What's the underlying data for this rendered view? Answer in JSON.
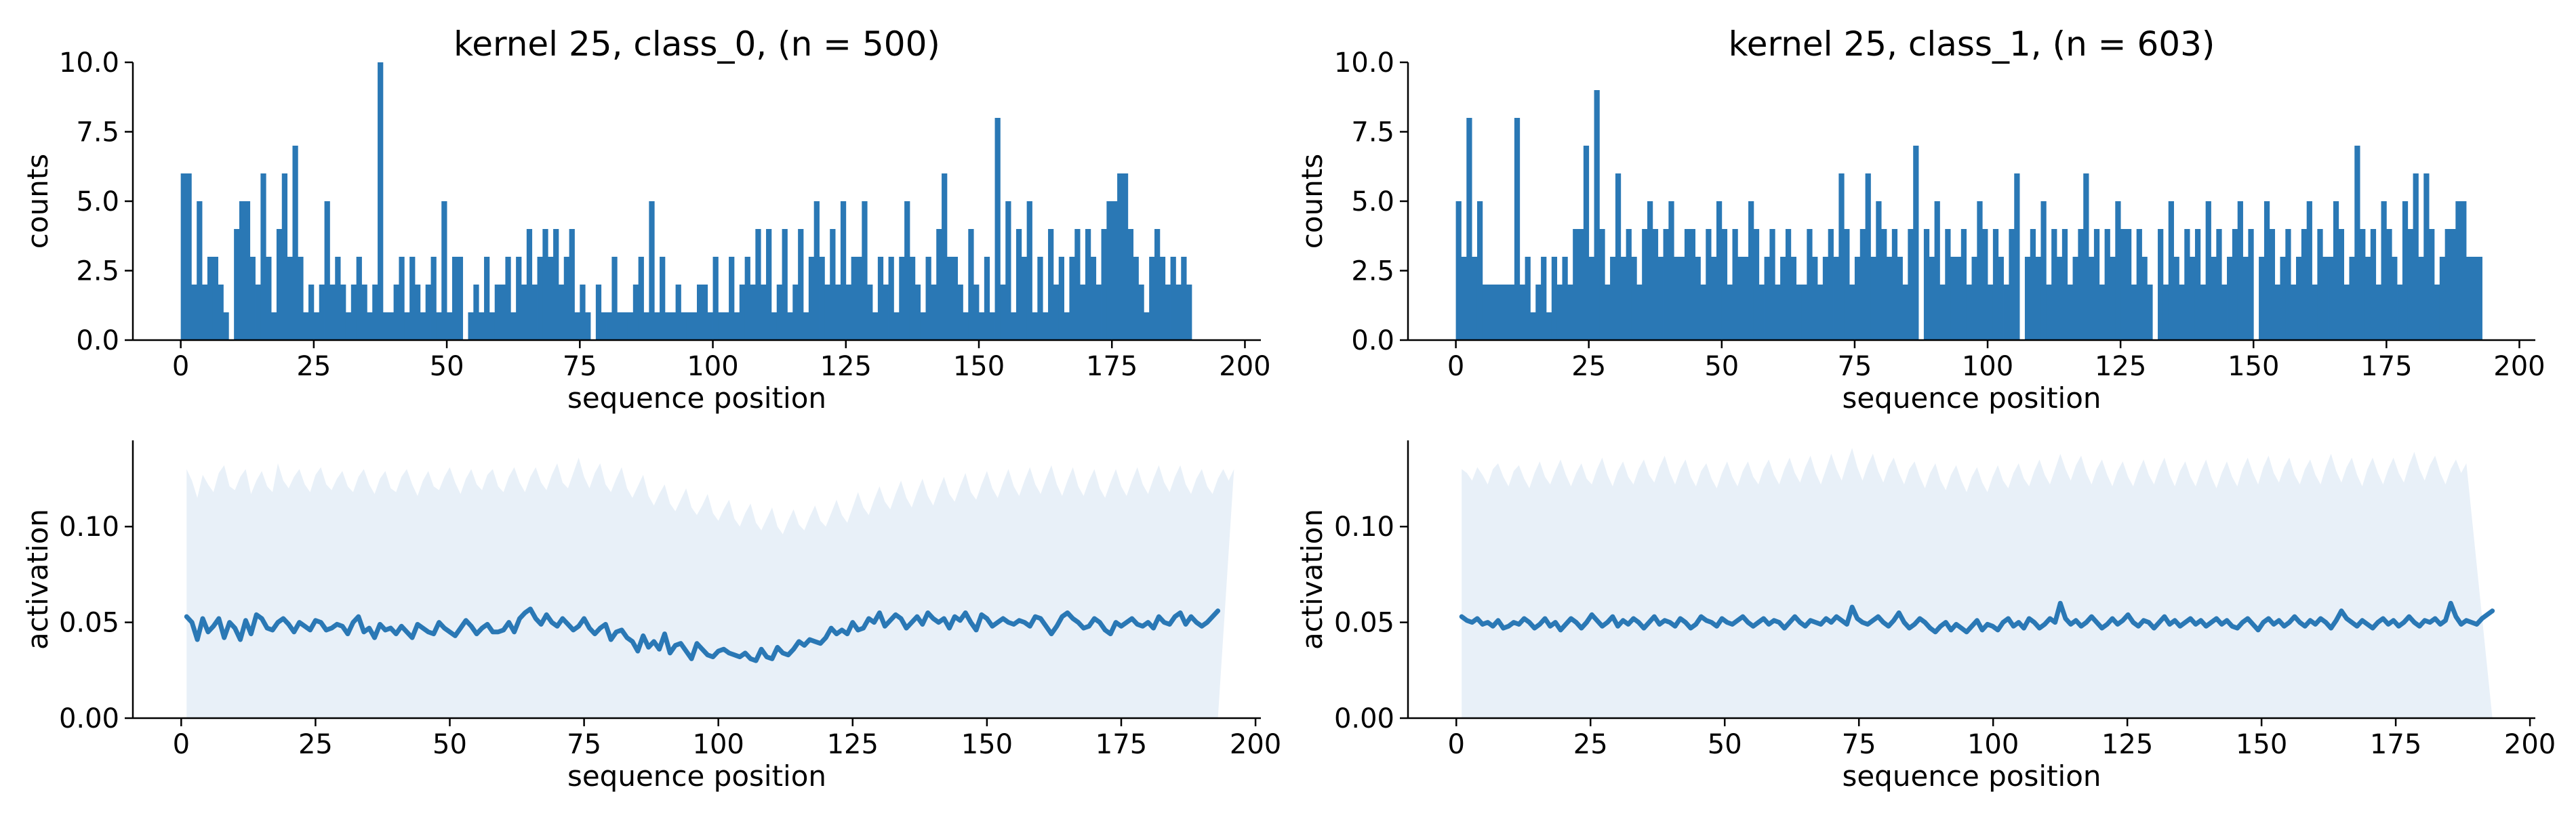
{
  "figure": {
    "colors": {
      "series": "#2a78b5",
      "band": "#e8f0f8",
      "axis": "#000000"
    }
  },
  "chart_data": [
    {
      "type": "bar",
      "title": "kernel 25, class_0, (n = 500)",
      "xlabel": "sequence position",
      "ylabel": "counts",
      "xlim": [
        -9,
        203
      ],
      "ylim": [
        0,
        10
      ],
      "xticks": [
        0,
        25,
        50,
        75,
        100,
        125,
        150,
        175,
        200
      ],
      "yticks": [
        0,
        2.5,
        5,
        7.5,
        10
      ],
      "ytick_labels": [
        "0.0",
        "2.5",
        "5.0",
        "7.5",
        "10.0"
      ],
      "grid": false,
      "legend": "none",
      "values": [
        6,
        6,
        2,
        5,
        2,
        3,
        3,
        2,
        1,
        0,
        4,
        5,
        5,
        3,
        2,
        6,
        3,
        1,
        4,
        6,
        3,
        7,
        3,
        1,
        2,
        1,
        2,
        5,
        2,
        3,
        2,
        1,
        2,
        3,
        2,
        1,
        2,
        10,
        1,
        1,
        2,
        3,
        1,
        3,
        2,
        1,
        2,
        3,
        1,
        5,
        1,
        3,
        3,
        0,
        1,
        2,
        1,
        3,
        1,
        2,
        2,
        3,
        1,
        3,
        2,
        4,
        2,
        3,
        4,
        3,
        4,
        2,
        3,
        4,
        1,
        2,
        1,
        0,
        2,
        1,
        1,
        3,
        1,
        1,
        1,
        2,
        3,
        1,
        5,
        1,
        3,
        1,
        1,
        2,
        1,
        1,
        1,
        2,
        2,
        1,
        3,
        1,
        1,
        3,
        1,
        2,
        3,
        2,
        4,
        2,
        4,
        1,
        2,
        4,
        1,
        2,
        4,
        1,
        3,
        5,
        3,
        2,
        4,
        2,
        5,
        2,
        3,
        3,
        5,
        2,
        1,
        3,
        2,
        3,
        1,
        3,
        5,
        3,
        2,
        1,
        3,
        2,
        4,
        6,
        3,
        3,
        2,
        1,
        4,
        2,
        1,
        3,
        1,
        8,
        2,
        5,
        1,
        4,
        3,
        5,
        1,
        3,
        1,
        4,
        2,
        3,
        1,
        3,
        4,
        2,
        4,
        3,
        2,
        4,
        5,
        5,
        6,
        6,
        4,
        3,
        2,
        1,
        3,
        4,
        3,
        2,
        3,
        2,
        3,
        2
      ],
      "band": {
        "upper": 0.13
      }
    },
    {
      "type": "bar",
      "title": "kernel 25, class_1, (n = 603)",
      "xlabel": "sequence position",
      "ylabel": "counts",
      "xlim": [
        -9,
        203
      ],
      "ylim": [
        0,
        10
      ],
      "xticks": [
        0,
        25,
        50,
        75,
        100,
        125,
        150,
        175,
        200
      ],
      "yticks": [
        0,
        2.5,
        5,
        7.5,
        10
      ],
      "ytick_labels": [
        "0.0",
        "2.5",
        "5.0",
        "7.5",
        "10.0"
      ],
      "grid": false,
      "legend": "none",
      "values": [
        5,
        3,
        8,
        3,
        5,
        2,
        2,
        2,
        2,
        2,
        2,
        8,
        2,
        3,
        1,
        2,
        3,
        1,
        3,
        2,
        3,
        2,
        4,
        4,
        7,
        3,
        9,
        4,
        2,
        3,
        6,
        3,
        4,
        3,
        2,
        4,
        5,
        4,
        3,
        4,
        5,
        3,
        3,
        4,
        4,
        3,
        2,
        4,
        3,
        5,
        4,
        2,
        4,
        3,
        3,
        5,
        4,
        2,
        3,
        4,
        2,
        3,
        4,
        3,
        2,
        2,
        4,
        3,
        2,
        3,
        4,
        3,
        6,
        4,
        2,
        3,
        4,
        6,
        3,
        5,
        4,
        3,
        4,
        3,
        2,
        4,
        7,
        0,
        4,
        3,
        5,
        2,
        4,
        3,
        3,
        4,
        2,
        3,
        5,
        4,
        2,
        4,
        3,
        2,
        4,
        6,
        0,
        3,
        4,
        3,
        5,
        2,
        4,
        3,
        4,
        2,
        3,
        4,
        6,
        3,
        4,
        2,
        4,
        3,
        5,
        4,
        4,
        2,
        4,
        3,
        2,
        0,
        4,
        2,
        5,
        3,
        2,
        4,
        3,
        4,
        2,
        5,
        3,
        4,
        2,
        3,
        4,
        5,
        3,
        4,
        0,
        3,
        5,
        4,
        2,
        3,
        4,
        2,
        3,
        4,
        5,
        2,
        4,
        3,
        3,
        5,
        4,
        2,
        3,
        7,
        4,
        3,
        4,
        2,
        5,
        4,
        3,
        2,
        5,
        4,
        6,
        3,
        6,
        4,
        2,
        3,
        4,
        4,
        5,
        5,
        3,
        3,
        3
      ],
      "band": {
        "upper": 0.13
      }
    },
    {
      "type": "area",
      "xlabel": "sequence position",
      "ylabel": "activation",
      "xlim": [
        -9,
        201
      ],
      "ylim": [
        0,
        0.145
      ],
      "xticks": [
        0,
        25,
        50,
        75,
        100,
        125,
        150,
        175,
        200
      ],
      "yticks": [
        0,
        0.05,
        0.1
      ],
      "ytick_labels": [
        "0.00",
        "0.05",
        "0.10"
      ],
      "grid": false,
      "legend": "none",
      "x_range": [
        1,
        193
      ],
      "line": [
        0.053,
        0.05,
        0.041,
        0.052,
        0.045,
        0.048,
        0.052,
        0.042,
        0.05,
        0.047,
        0.041,
        0.051,
        0.044,
        0.054,
        0.052,
        0.047,
        0.046,
        0.05,
        0.052,
        0.049,
        0.045,
        0.05,
        0.048,
        0.046,
        0.051,
        0.05,
        0.046,
        0.047,
        0.049,
        0.048,
        0.044,
        0.05,
        0.053,
        0.045,
        0.047,
        0.042,
        0.049,
        0.046,
        0.047,
        0.044,
        0.048,
        0.045,
        0.042,
        0.049,
        0.047,
        0.045,
        0.044,
        0.05,
        0.047,
        0.045,
        0.043,
        0.047,
        0.051,
        0.048,
        0.044,
        0.047,
        0.049,
        0.045,
        0.045,
        0.046,
        0.05,
        0.045,
        0.052,
        0.055,
        0.057,
        0.052,
        0.049,
        0.054,
        0.05,
        0.048,
        0.052,
        0.049,
        0.046,
        0.048,
        0.052,
        0.047,
        0.044,
        0.047,
        0.049,
        0.041,
        0.045,
        0.046,
        0.042,
        0.04,
        0.035,
        0.043,
        0.037,
        0.04,
        0.036,
        0.044,
        0.034,
        0.038,
        0.039,
        0.035,
        0.031,
        0.039,
        0.036,
        0.033,
        0.032,
        0.035,
        0.036,
        0.034,
        0.033,
        0.032,
        0.034,
        0.031,
        0.03,
        0.036,
        0.032,
        0.031,
        0.037,
        0.034,
        0.033,
        0.036,
        0.04,
        0.038,
        0.041,
        0.04,
        0.039,
        0.042,
        0.047,
        0.044,
        0.046,
        0.044,
        0.05,
        0.046,
        0.047,
        0.052,
        0.05,
        0.055,
        0.048,
        0.051,
        0.054,
        0.052,
        0.047,
        0.05,
        0.053,
        0.049,
        0.055,
        0.052,
        0.05,
        0.052,
        0.047,
        0.053,
        0.051,
        0.055,
        0.05,
        0.046,
        0.054,
        0.052,
        0.048,
        0.05,
        0.052,
        0.05,
        0.049,
        0.051,
        0.05,
        0.048,
        0.053,
        0.052,
        0.048,
        0.044,
        0.048,
        0.053,
        0.055,
        0.052,
        0.05,
        0.047,
        0.048,
        0.052,
        0.05,
        0.046,
        0.044,
        0.05,
        0.048,
        0.05,
        0.052,
        0.049,
        0.048,
        0.05,
        0.047,
        0.053,
        0.05,
        0.049,
        0.053,
        0.055,
        0.049,
        0.053,
        0.05,
        0.048,
        0.05,
        0.053,
        0.056
      ],
      "band_upper": [
        0.13,
        0.124,
        0.115,
        0.127,
        0.122,
        0.118,
        0.128,
        0.132,
        0.121,
        0.119,
        0.126,
        0.13,
        0.117,
        0.124,
        0.129,
        0.121,
        0.118,
        0.133,
        0.124,
        0.12,
        0.126,
        0.13,
        0.122,
        0.118,
        0.127,
        0.131,
        0.122,
        0.119,
        0.125,
        0.129,
        0.121,
        0.118,
        0.126,
        0.13,
        0.122,
        0.117,
        0.125,
        0.129,
        0.12,
        0.118,
        0.126,
        0.13,
        0.122,
        0.116,
        0.124,
        0.129,
        0.121,
        0.119,
        0.126,
        0.131,
        0.123,
        0.117,
        0.125,
        0.13,
        0.122,
        0.119,
        0.127,
        0.13,
        0.121,
        0.118,
        0.126,
        0.131,
        0.123,
        0.118,
        0.126,
        0.131,
        0.123,
        0.119,
        0.127,
        0.133,
        0.123,
        0.12,
        0.128,
        0.136,
        0.126,
        0.12,
        0.128,
        0.133,
        0.122,
        0.118,
        0.125,
        0.131,
        0.12,
        0.115,
        0.121,
        0.127,
        0.116,
        0.111,
        0.117,
        0.122,
        0.112,
        0.108,
        0.114,
        0.12,
        0.11,
        0.106,
        0.111,
        0.117,
        0.107,
        0.103,
        0.109,
        0.114,
        0.104,
        0.1,
        0.107,
        0.112,
        0.102,
        0.098,
        0.104,
        0.11,
        0.1,
        0.096,
        0.103,
        0.109,
        0.101,
        0.098,
        0.105,
        0.111,
        0.103,
        0.1,
        0.107,
        0.114,
        0.106,
        0.102,
        0.11,
        0.118,
        0.11,
        0.106,
        0.114,
        0.121,
        0.113,
        0.109,
        0.117,
        0.124,
        0.115,
        0.11,
        0.118,
        0.125,
        0.116,
        0.111,
        0.119,
        0.126,
        0.117,
        0.113,
        0.121,
        0.128,
        0.118,
        0.114,
        0.122,
        0.129,
        0.12,
        0.115,
        0.123,
        0.13,
        0.121,
        0.116,
        0.124,
        0.131,
        0.122,
        0.117,
        0.125,
        0.132,
        0.122,
        0.116,
        0.124,
        0.131,
        0.121,
        0.116,
        0.124,
        0.13,
        0.12,
        0.115,
        0.123,
        0.13,
        0.121,
        0.116,
        0.124,
        0.131,
        0.122,
        0.117,
        0.125,
        0.132,
        0.123,
        0.118,
        0.126,
        0.132,
        0.122,
        0.117,
        0.125,
        0.13,
        0.121,
        0.117,
        0.125,
        0.13,
        0.124,
        0.13
      ]
    },
    {
      "type": "area",
      "xlabel": "sequence position",
      "ylabel": "activation",
      "xlim": [
        -9,
        201
      ],
      "ylim": [
        0,
        0.145
      ],
      "xticks": [
        0,
        25,
        50,
        75,
        100,
        125,
        150,
        175,
        200
      ],
      "yticks": [
        0,
        0.05,
        0.1
      ],
      "ytick_labels": [
        "0.00",
        "0.05",
        "0.10"
      ],
      "grid": false,
      "legend": "none",
      "x_range": [
        1,
        193
      ],
      "line": [
        0.053,
        0.051,
        0.05,
        0.052,
        0.049,
        0.05,
        0.048,
        0.051,
        0.047,
        0.048,
        0.05,
        0.049,
        0.052,
        0.05,
        0.047,
        0.049,
        0.052,
        0.048,
        0.05,
        0.046,
        0.049,
        0.052,
        0.05,
        0.047,
        0.05,
        0.054,
        0.051,
        0.048,
        0.05,
        0.053,
        0.048,
        0.051,
        0.049,
        0.052,
        0.05,
        0.047,
        0.05,
        0.053,
        0.049,
        0.051,
        0.05,
        0.048,
        0.052,
        0.05,
        0.047,
        0.049,
        0.053,
        0.051,
        0.05,
        0.048,
        0.052,
        0.05,
        0.049,
        0.051,
        0.053,
        0.05,
        0.048,
        0.05,
        0.052,
        0.049,
        0.051,
        0.05,
        0.047,
        0.05,
        0.053,
        0.05,
        0.048,
        0.051,
        0.05,
        0.049,
        0.052,
        0.05,
        0.053,
        0.051,
        0.049,
        0.058,
        0.052,
        0.05,
        0.049,
        0.051,
        0.053,
        0.05,
        0.048,
        0.051,
        0.055,
        0.05,
        0.047,
        0.049,
        0.052,
        0.05,
        0.047,
        0.045,
        0.048,
        0.05,
        0.046,
        0.049,
        0.047,
        0.045,
        0.048,
        0.051,
        0.046,
        0.049,
        0.048,
        0.046,
        0.05,
        0.052,
        0.048,
        0.05,
        0.047,
        0.052,
        0.05,
        0.047,
        0.049,
        0.052,
        0.05,
        0.06,
        0.052,
        0.049,
        0.051,
        0.048,
        0.05,
        0.053,
        0.05,
        0.047,
        0.049,
        0.052,
        0.049,
        0.051,
        0.054,
        0.05,
        0.048,
        0.051,
        0.05,
        0.047,
        0.05,
        0.053,
        0.049,
        0.051,
        0.048,
        0.05,
        0.052,
        0.049,
        0.051,
        0.048,
        0.05,
        0.052,
        0.049,
        0.051,
        0.048,
        0.047,
        0.05,
        0.052,
        0.049,
        0.046,
        0.05,
        0.052,
        0.049,
        0.051,
        0.048,
        0.05,
        0.053,
        0.05,
        0.048,
        0.051,
        0.049,
        0.052,
        0.05,
        0.047,
        0.051,
        0.056,
        0.052,
        0.05,
        0.048,
        0.051,
        0.049,
        0.047,
        0.05,
        0.052,
        0.049,
        0.051,
        0.048,
        0.05,
        0.053,
        0.05,
        0.048,
        0.051,
        0.05,
        0.052,
        0.049,
        0.051,
        0.06,
        0.053,
        0.049,
        0.051,
        0.05,
        0.049,
        0.052,
        0.054,
        0.056
      ],
      "band_upper": [
        0.13,
        0.128,
        0.124,
        0.131,
        0.127,
        0.122,
        0.13,
        0.133,
        0.126,
        0.121,
        0.129,
        0.132,
        0.125,
        0.12,
        0.128,
        0.134,
        0.126,
        0.122,
        0.129,
        0.135,
        0.127,
        0.121,
        0.128,
        0.133,
        0.125,
        0.122,
        0.13,
        0.136,
        0.127,
        0.121,
        0.129,
        0.134,
        0.126,
        0.122,
        0.13,
        0.135,
        0.127,
        0.123,
        0.131,
        0.137,
        0.128,
        0.122,
        0.13,
        0.135,
        0.126,
        0.121,
        0.129,
        0.133,
        0.125,
        0.12,
        0.128,
        0.134,
        0.126,
        0.121,
        0.129,
        0.134,
        0.126,
        0.122,
        0.13,
        0.135,
        0.127,
        0.122,
        0.13,
        0.136,
        0.128,
        0.123,
        0.131,
        0.137,
        0.128,
        0.122,
        0.13,
        0.138,
        0.13,
        0.124,
        0.133,
        0.141,
        0.131,
        0.124,
        0.132,
        0.138,
        0.129,
        0.123,
        0.131,
        0.136,
        0.128,
        0.122,
        0.13,
        0.134,
        0.126,
        0.12,
        0.128,
        0.133,
        0.124,
        0.119,
        0.127,
        0.132,
        0.124,
        0.118,
        0.126,
        0.131,
        0.123,
        0.118,
        0.126,
        0.132,
        0.124,
        0.12,
        0.128,
        0.133,
        0.125,
        0.121,
        0.129,
        0.135,
        0.127,
        0.122,
        0.13,
        0.138,
        0.13,
        0.124,
        0.132,
        0.137,
        0.128,
        0.122,
        0.13,
        0.135,
        0.127,
        0.121,
        0.129,
        0.134,
        0.126,
        0.121,
        0.129,
        0.135,
        0.127,
        0.122,
        0.13,
        0.136,
        0.127,
        0.121,
        0.129,
        0.134,
        0.126,
        0.121,
        0.129,
        0.135,
        0.126,
        0.12,
        0.128,
        0.134,
        0.126,
        0.121,
        0.13,
        0.136,
        0.128,
        0.122,
        0.131,
        0.137,
        0.128,
        0.123,
        0.131,
        0.136,
        0.127,
        0.122,
        0.13,
        0.135,
        0.127,
        0.122,
        0.131,
        0.138,
        0.129,
        0.123,
        0.131,
        0.136,
        0.127,
        0.121,
        0.13,
        0.136,
        0.128,
        0.122,
        0.13,
        0.136,
        0.128,
        0.123,
        0.132,
        0.139,
        0.13,
        0.124,
        0.132,
        0.137,
        0.128,
        0.122,
        0.13,
        0.135,
        0.128,
        0.133
      ]
    }
  ]
}
